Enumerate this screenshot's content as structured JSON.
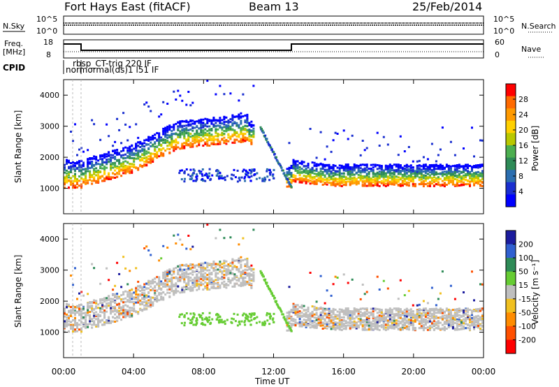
{
  "header": {
    "radar": "Fort Hays East (fitACF)",
    "beam": "Beam 13",
    "date": "25/Feb/2014"
  },
  "top_panels": {
    "nsky_label": "N.Sky",
    "nsky_ticks": [
      "10^5",
      "10^0"
    ],
    "nsearch_label": "N.Search",
    "freq_label_1": "Freq.",
    "freq_label_2": "[MHz]",
    "freq_ticks": [
      "18",
      "8"
    ],
    "nave_label": "Nave",
    "nave_ticks": [
      "60",
      "0"
    ],
    "cpid_label": "CPID",
    "cpid_text_1": "rbsp_CT-trig 220 IF",
    "cpid_text_2": "normormal(ds)1 l51 IF"
  },
  "chart_data": [
    {
      "type": "heatmap",
      "title": "",
      "ylabel": "Slant Range [km]",
      "xlabel": "Time UT",
      "y_ticks": [
        "1000",
        "2000",
        "3000",
        "4000"
      ],
      "x_ticks": [
        "00:00",
        "04:00",
        "08:00",
        "12:00",
        "16:00",
        "20:00",
        "00:00"
      ],
      "xlim": [
        "00:00",
        "24:00"
      ],
      "ylim": [
        180,
        4500
      ],
      "colorbar_label": "Power [dB]",
      "colorbar_ticks": [
        "28",
        "24",
        "20",
        "16",
        "12",
        "8",
        "4"
      ],
      "colorbar_colors": [
        "#ff0000",
        "#ff6a00",
        "#ff9a00",
        "#ffd000",
        "#b9c800",
        "#4caf50",
        "#2e8b57",
        "#2b6eb0",
        "#1a2fd0",
        "#0000ff"
      ],
      "color_scale_range": [
        0,
        32
      ]
    },
    {
      "type": "heatmap",
      "title": "",
      "ylabel": "Slant Range [km]",
      "xlabel": "Time UT",
      "y_ticks": [
        "1000",
        "2000",
        "3000",
        "4000"
      ],
      "x_ticks": [
        "00:00",
        "04:00",
        "08:00",
        "12:00",
        "16:00",
        "20:00",
        "00:00"
      ],
      "xlim": [
        "00:00",
        "24:00"
      ],
      "ylim": [
        180,
        4500
      ],
      "colorbar_label": "Velocity [m s⁻¹]",
      "colorbar_ticks": [
        "200",
        "100",
        "50",
        "15",
        "-15",
        "-50",
        "-100",
        "-200"
      ],
      "colorbar_colors": [
        "#1c1c9e",
        "#3060d0",
        "#2e8b57",
        "#66cc33",
        "#bfbfbf",
        "#f0c020",
        "#ff8c00",
        "#ff5000",
        "#ff0000"
      ]
    }
  ],
  "axis": {
    "xlabel": "Time UT",
    "ylabel": "Slant Range [km]"
  }
}
